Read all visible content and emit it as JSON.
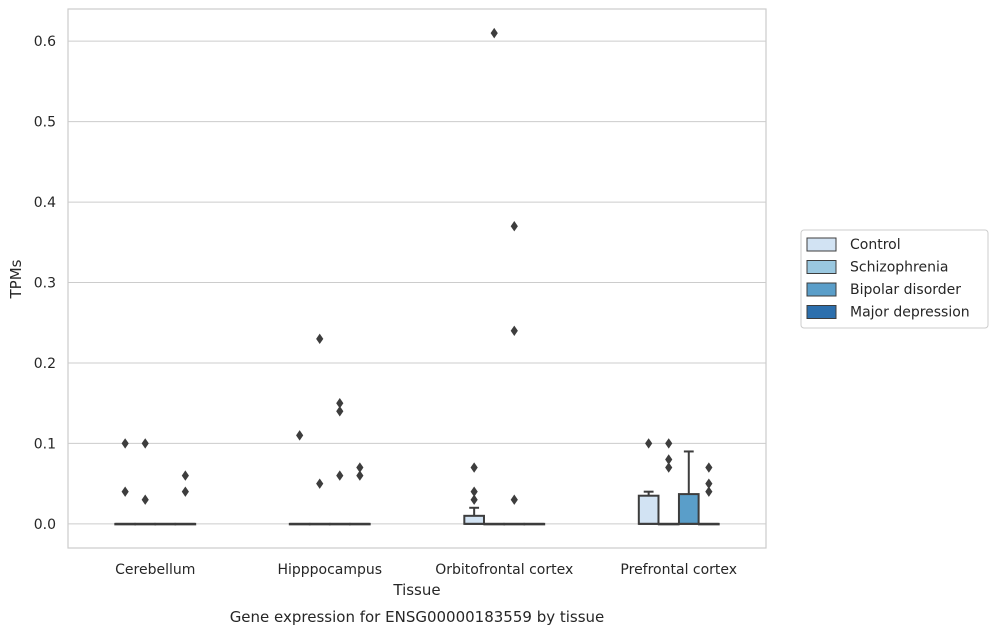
{
  "chart_data": {
    "type": "box",
    "title": "",
    "caption": "Gene expression for ENSG00000183559 by tissue",
    "xlabel": "Tissue",
    "ylabel": "TPMs",
    "ylim": [
      -0.03,
      0.64
    ],
    "yticks": [
      "0.0",
      "0.1",
      "0.2",
      "0.3",
      "0.4",
      "0.5",
      "0.6"
    ],
    "ytick_values": [
      0.0,
      0.1,
      0.2,
      0.3,
      0.4,
      0.5,
      0.6
    ],
    "grid": "horizontal",
    "legend_position": "right",
    "categories": [
      "Cerebellum",
      "Hipppocampus",
      "Orbitofrontal cortex",
      "Prefrontal cortex"
    ],
    "series": [
      {
        "name": "Control",
        "color": "#d2e3f3",
        "boxes": [
          {
            "q1": 0.0,
            "median": 0.0,
            "q3": 0.0,
            "whisker_low": 0.0,
            "whisker_high": 0.0,
            "outliers": [
              0.04,
              0.1
            ]
          },
          {
            "q1": 0.0,
            "median": 0.0,
            "q3": 0.0,
            "whisker_low": 0.0,
            "whisker_high": 0.0,
            "outliers": [
              0.11
            ]
          },
          {
            "q1": 0.0,
            "median": 0.0,
            "q3": 0.01,
            "whisker_low": 0.0,
            "whisker_high": 0.02,
            "outliers": [
              0.03,
              0.04,
              0.07
            ]
          },
          {
            "q1": 0.0,
            "median": 0.0,
            "q3": 0.035,
            "whisker_low": 0.0,
            "whisker_high": 0.04,
            "outliers": [
              0.1
            ]
          }
        ]
      },
      {
        "name": "Schizophrenia",
        "color": "#9ac8e0",
        "boxes": [
          {
            "q1": 0.0,
            "median": 0.0,
            "q3": 0.0,
            "whisker_low": 0.0,
            "whisker_high": 0.0,
            "outliers": [
              0.03,
              0.1
            ]
          },
          {
            "q1": 0.0,
            "median": 0.0,
            "q3": 0.0,
            "whisker_low": 0.0,
            "whisker_high": 0.0,
            "outliers": [
              0.05,
              0.23
            ]
          },
          {
            "q1": 0.0,
            "median": 0.0,
            "q3": 0.0,
            "whisker_low": 0.0,
            "whisker_high": 0.0,
            "outliers": [
              0.61
            ]
          },
          {
            "q1": 0.0,
            "median": 0.0,
            "q3": 0.0,
            "whisker_low": 0.0,
            "whisker_high": 0.0,
            "outliers": [
              0.07,
              0.08,
              0.1
            ]
          }
        ]
      },
      {
        "name": "Bipolar disorder",
        "color": "#5a9ec9",
        "boxes": [
          {
            "q1": 0.0,
            "median": 0.0,
            "q3": 0.0,
            "whisker_low": 0.0,
            "whisker_high": 0.0,
            "outliers": []
          },
          {
            "q1": 0.0,
            "median": 0.0,
            "q3": 0.0,
            "whisker_low": 0.0,
            "whisker_high": 0.0,
            "outliers": [
              0.06,
              0.14,
              0.15
            ]
          },
          {
            "q1": 0.0,
            "median": 0.0,
            "q3": 0.0,
            "whisker_low": 0.0,
            "whisker_high": 0.0,
            "outliers": [
              0.03,
              0.24,
              0.37
            ]
          },
          {
            "q1": 0.0,
            "median": 0.0,
            "q3": 0.037,
            "whisker_low": 0.0,
            "whisker_high": 0.09,
            "outliers": []
          }
        ]
      },
      {
        "name": "Major depression",
        "color": "#2c6fad",
        "boxes": [
          {
            "q1": 0.0,
            "median": 0.0,
            "q3": 0.0,
            "whisker_low": 0.0,
            "whisker_high": 0.0,
            "outliers": [
              0.04,
              0.06
            ]
          },
          {
            "q1": 0.0,
            "median": 0.0,
            "q3": 0.0,
            "whisker_low": 0.0,
            "whisker_high": 0.0,
            "outliers": [
              0.06,
              0.07
            ]
          },
          {
            "q1": 0.0,
            "median": 0.0,
            "q3": 0.0,
            "whisker_low": 0.0,
            "whisker_high": 0.0,
            "outliers": []
          },
          {
            "q1": 0.0,
            "median": 0.0,
            "q3": 0.0,
            "whisker_low": 0.0,
            "whisker_high": 0.0,
            "outliers": [
              0.04,
              0.05,
              0.07
            ]
          }
        ]
      }
    ]
  },
  "colors": {
    "grid": "#cccccc",
    "frame": "#cccccc",
    "box_edge": "#3d3d3d",
    "outlier": "#3d3d3d"
  }
}
